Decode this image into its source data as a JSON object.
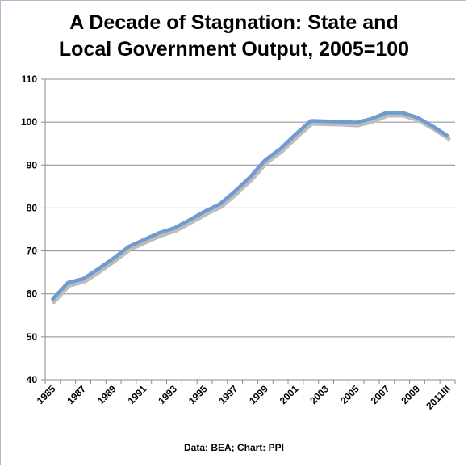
{
  "chart_data": {
    "type": "line",
    "title_line1": "A Decade of Stagnation: State and",
    "title_line2": "Local Government Output, 2005=100",
    "source": "Data: BEA; Chart: PPI",
    "xlabel": "",
    "ylabel": "",
    "ylim": [
      40,
      110
    ],
    "y_ticks": [
      40,
      50,
      60,
      70,
      80,
      90,
      100,
      110
    ],
    "x_tick_labels": [
      "1985",
      "1987",
      "1989",
      "1991",
      "1993",
      "1995",
      "1997",
      "1999",
      "2001",
      "2003",
      "2005",
      "2007",
      "2009",
      "2011III"
    ],
    "grid": "horizontal",
    "line_color": "#6f9bd1",
    "shadow_color": "#bdbdbd",
    "series": [
      {
        "x": [
          "1985",
          "1986",
          "1987",
          "1988",
          "1989",
          "1990",
          "1991",
          "1992",
          "1993",
          "1994",
          "1995",
          "1996",
          "1997",
          "1998",
          "1999",
          "2000",
          "2001",
          "2002",
          "2003",
          "2004",
          "2005",
          "2006",
          "2007",
          "2008",
          "2009",
          "2010",
          "2011III"
        ],
        "values": [
          58.8,
          62.6,
          63.5,
          65.8,
          68.3,
          71.0,
          72.6,
          74.2,
          75.3,
          77.2,
          79.2,
          80.9,
          83.9,
          87.2,
          91.2,
          93.8,
          97.2,
          100.3,
          100.2,
          100.1,
          99.9,
          100.8,
          102.2,
          102.2,
          101.1,
          99.1,
          96.8
        ]
      }
    ]
  }
}
